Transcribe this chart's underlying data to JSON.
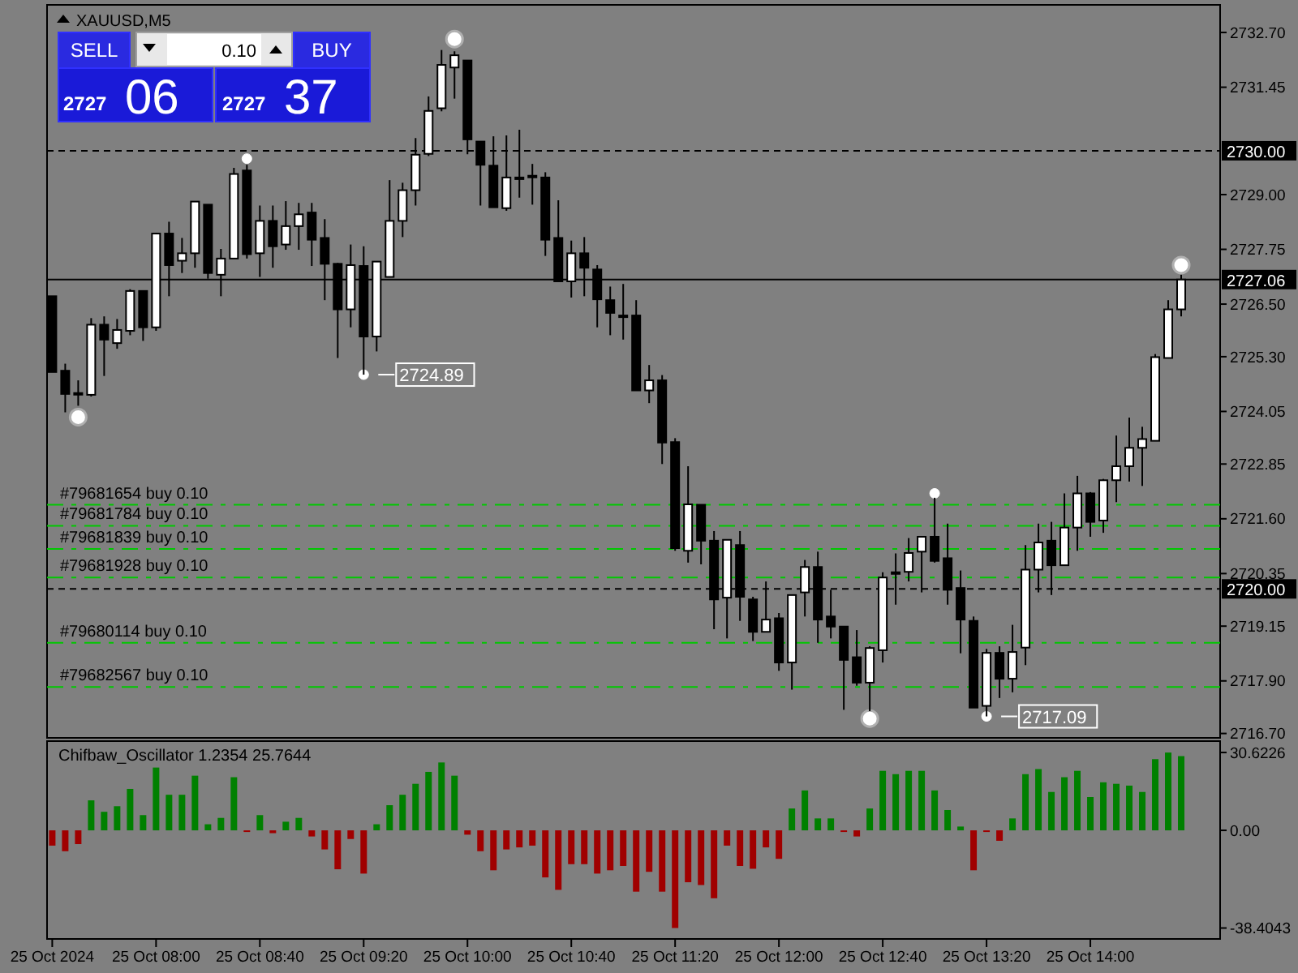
{
  "chart_data": [
    {
      "type": "candlestick",
      "title": "XAUUSD,M5",
      "tick_labels": "y",
      "x": [
        "2024-10-25T07:20",
        "2024-10-25T07:25",
        "2024-10-25T07:30",
        "2024-10-25T07:35",
        "2024-10-25T07:40",
        "2024-10-25T07:45",
        "2024-10-25T07:50",
        "2024-10-25T07:55",
        "2024-10-25T08:00",
        "2024-10-25T08:05",
        "2024-10-25T08:10",
        "2024-10-25T08:15",
        "2024-10-25T08:20",
        "2024-10-25T08:25",
        "2024-10-25T08:30",
        "2024-10-25T08:35",
        "2024-10-25T08:40",
        "2024-10-25T08:45",
        "2024-10-25T08:50",
        "2024-10-25T08:55",
        "2024-10-25T09:00",
        "2024-10-25T09:05",
        "2024-10-25T09:10",
        "2024-10-25T09:15",
        "2024-10-25T09:20",
        "2024-10-25T09:25",
        "2024-10-25T09:30",
        "2024-10-25T09:35",
        "2024-10-25T09:40",
        "2024-10-25T09:45",
        "2024-10-25T09:50",
        "2024-10-25T09:55",
        "2024-10-25T10:00",
        "2024-10-25T10:05",
        "2024-10-25T10:10",
        "2024-10-25T10:15",
        "2024-10-25T10:20",
        "2024-10-25T10:25",
        "2024-10-25T10:30",
        "2024-10-25T10:35",
        "2024-10-25T10:40",
        "2024-10-25T10:45",
        "2024-10-25T10:50",
        "2024-10-25T10:55",
        "2024-10-25T11:00",
        "2024-10-25T11:05",
        "2024-10-25T11:10",
        "2024-10-25T11:15",
        "2024-10-25T11:20",
        "2024-10-25T11:25",
        "2024-10-25T11:30",
        "2024-10-25T11:35",
        "2024-10-25T11:40",
        "2024-10-25T11:45",
        "2024-10-25T11:50",
        "2024-10-25T11:55",
        "2024-10-25T12:00",
        "2024-10-25T12:05",
        "2024-10-25T12:10",
        "2024-10-25T12:15",
        "2024-10-25T12:20",
        "2024-10-25T12:25",
        "2024-10-25T12:30",
        "2024-10-25T12:35",
        "2024-10-25T12:40",
        "2024-10-25T12:45",
        "2024-10-25T12:50",
        "2024-10-25T12:55",
        "2024-10-25T13:00",
        "2024-10-25T13:05",
        "2024-10-25T13:10",
        "2024-10-25T13:15",
        "2024-10-25T13:20",
        "2024-10-25T13:25",
        "2024-10-25T13:30",
        "2024-10-25T13:35",
        "2024-10-25T13:40",
        "2024-10-25T13:45",
        "2024-10-25T13:50",
        "2024-10-25T13:55",
        "2024-10-25T14:00",
        "2024-10-25T14:05",
        "2024-10-25T14:10",
        "2024-10-25T14:15",
        "2024-10-25T14:20",
        "2024-10-25T14:25",
        "2024-10-25T14:30",
        "2024-10-25T14:35"
      ],
      "ohlc": [
        [
          2726.68,
          2726.68,
          2724.95,
          2724.95
        ],
        [
          2724.98,
          2725.14,
          2724.03,
          2724.45
        ],
        [
          2724.47,
          2724.76,
          2724.18,
          2724.47
        ],
        [
          2724.43,
          2726.18,
          2724.39,
          2726.03
        ],
        [
          2726.03,
          2726.22,
          2724.86,
          2725.69
        ],
        [
          2725.61,
          2726.16,
          2725.48,
          2725.91
        ],
        [
          2725.89,
          2726.84,
          2725.79,
          2726.8
        ],
        [
          2726.8,
          2726.8,
          2725.66,
          2725.97
        ],
        [
          2725.97,
          2728.13,
          2725.89,
          2728.11
        ],
        [
          2728.11,
          2728.38,
          2726.68,
          2727.39
        ],
        [
          2727.49,
          2728.01,
          2727.21,
          2727.66
        ],
        [
          2727.66,
          2728.84,
          2727.33,
          2728.84
        ],
        [
          2728.77,
          2728.77,
          2727.08,
          2727.21
        ],
        [
          2727.17,
          2727.76,
          2726.68,
          2727.54
        ],
        [
          2727.54,
          2729.61,
          2727.54,
          2729.47
        ],
        [
          2729.55,
          2729.68,
          2727.54,
          2727.64
        ],
        [
          2727.66,
          2728.75,
          2727.12,
          2728.4
        ],
        [
          2728.4,
          2728.75,
          2727.33,
          2727.82
        ],
        [
          2727.86,
          2728.85,
          2727.74,
          2728.28
        ],
        [
          2728.28,
          2728.81,
          2727.74,
          2728.55
        ],
        [
          2728.59,
          2728.81,
          2727.37,
          2727.97
        ],
        [
          2728.01,
          2728.44,
          2726.59,
          2727.42
        ],
        [
          2727.42,
          2727.44,
          2725.27,
          2726.38
        ],
        [
          2726.38,
          2727.86,
          2725.97,
          2727.39
        ],
        [
          2727.37,
          2727.82,
          2724.89,
          2725.76
        ],
        [
          2725.76,
          2727.47,
          2725.42,
          2727.47
        ],
        [
          2727.12,
          2729.33,
          2727.12,
          2728.4
        ],
        [
          2728.4,
          2729.27,
          2728.03,
          2729.1
        ],
        [
          2729.1,
          2730.29,
          2728.75,
          2729.91
        ],
        [
          2729.93,
          2731.24,
          2729.88,
          2730.91
        ],
        [
          2730.97,
          2732.3,
          2730.9,
          2731.96
        ],
        [
          2731.9,
          2732.27,
          2731.19,
          2732.18
        ],
        [
          2732.06,
          2732.06,
          2729.92,
          2730.26
        ],
        [
          2730.21,
          2730.21,
          2728.75,
          2729.68
        ],
        [
          2729.66,
          2730.33,
          2728.71,
          2728.71
        ],
        [
          2728.69,
          2730.35,
          2728.63,
          2729.39
        ],
        [
          2729.39,
          2730.48,
          2728.93,
          2729.39
        ],
        [
          2729.43,
          2729.7,
          2728.77,
          2729.43
        ],
        [
          2729.39,
          2729.51,
          2727.6,
          2727.97
        ],
        [
          2728.01,
          2728.87,
          2727.02,
          2727.02
        ],
        [
          2727.02,
          2727.95,
          2726.65,
          2727.66
        ],
        [
          2727.66,
          2728.03,
          2726.68,
          2727.33
        ],
        [
          2727.29,
          2727.39,
          2725.97,
          2726.61
        ],
        [
          2726.59,
          2726.9,
          2725.79,
          2726.3
        ],
        [
          2726.24,
          2726.96,
          2725.69,
          2726.24
        ],
        [
          2726.24,
          2726.59,
          2724.53,
          2724.53
        ],
        [
          2724.53,
          2725.11,
          2724.24,
          2724.76
        ],
        [
          2724.76,
          2724.88,
          2722.85,
          2723.34
        ],
        [
          2723.35,
          2723.44,
          2720.87,
          2720.93
        ],
        [
          2720.87,
          2722.8,
          2720.6,
          2721.93
        ],
        [
          2721.92,
          2721.92,
          2720.56,
          2721.1
        ],
        [
          2721.1,
          2721.32,
          2719.08,
          2719.76
        ],
        [
          2719.8,
          2721.12,
          2718.87,
          2721.12
        ],
        [
          2721.0,
          2721.32,
          2719.27,
          2719.82
        ],
        [
          2719.76,
          2719.82,
          2718.81,
          2719.02
        ],
        [
          2719.02,
          2720.17,
          2719.02,
          2719.3
        ],
        [
          2719.33,
          2719.45,
          2718.13,
          2718.32
        ],
        [
          2718.32,
          2719.86,
          2717.7,
          2719.86
        ],
        [
          2719.92,
          2720.66,
          2719.37,
          2720.5
        ],
        [
          2720.5,
          2720.85,
          2718.77,
          2719.3
        ],
        [
          2719.37,
          2719.98,
          2718.87,
          2719.14
        ],
        [
          2719.14,
          2719.14,
          2717.24,
          2718.38
        ],
        [
          2718.44,
          2719.06,
          2717.79,
          2717.86
        ],
        [
          2717.86,
          2718.69,
          2717.21,
          2718.65
        ],
        [
          2718.6,
          2720.38,
          2718.32,
          2720.26
        ],
        [
          2720.38,
          2720.81,
          2719.64,
          2720.38
        ],
        [
          2720.39,
          2721.16,
          2720.17,
          2720.82
        ],
        [
          2720.85,
          2721.19,
          2719.92,
          2721.19
        ],
        [
          2721.19,
          2722.08,
          2720.6,
          2720.64
        ],
        [
          2720.7,
          2721.49,
          2719.64,
          2719.98
        ],
        [
          2720.02,
          2720.42,
          2718.53,
          2719.3
        ],
        [
          2719.27,
          2719.37,
          2717.29,
          2717.29
        ],
        [
          2717.33,
          2718.63,
          2717.09,
          2718.54
        ],
        [
          2718.54,
          2718.69,
          2717.51,
          2717.95
        ],
        [
          2717.95,
          2719.18,
          2717.64,
          2718.56
        ],
        [
          2718.66,
          2721.0,
          2718.26,
          2720.44
        ],
        [
          2720.44,
          2721.49,
          2719.92,
          2721.06
        ],
        [
          2721.1,
          2721.53,
          2719.86,
          2720.54
        ],
        [
          2720.54,
          2722.18,
          2720.54,
          2721.4
        ],
        [
          2721.4,
          2722.58,
          2720.87,
          2722.18
        ],
        [
          2722.18,
          2722.21,
          2721.19,
          2721.53
        ],
        [
          2721.56,
          2722.51,
          2721.28,
          2722.48
        ],
        [
          2722.48,
          2723.5,
          2721.98,
          2722.8
        ],
        [
          2722.8,
          2723.91,
          2722.45,
          2723.22
        ],
        [
          2723.22,
          2723.7,
          2722.35,
          2723.42
        ],
        [
          2723.38,
          2725.36,
          2723.38,
          2725.29
        ],
        [
          2725.27,
          2726.59,
          2725.27,
          2726.38
        ],
        [
          2726.38,
          2727.17,
          2726.22,
          2727.06
        ]
      ],
      "series": [
        {
          "type": "scatter",
          "marker": "circle",
          "color": "#ffffff",
          "x": [
            "2024-10-25T07:30",
            "2024-10-25T09:55",
            "2024-10-25T12:35",
            "2024-10-25T14:35"
          ],
          "values": [
            2723.92,
            2732.55,
            2717.04,
            2727.39
          ]
        },
        {
          "type": "scatter",
          "marker": "circle",
          "color": "#ffffff",
          "x": [
            "2024-10-25T08:35",
            "2024-10-25T09:20",
            "2024-10-25T13:00",
            "2024-10-25T13:20"
          ],
          "values": [
            2729.82,
            2724.89,
            2722.18,
            2717.09
          ]
        }
      ],
      "xlim": [
        "2024-10-25T07:18",
        "2024-10-25T14:50"
      ],
      "ylim": [
        2716.6,
        2733.33
      ],
      "yticks": [
        {
          "value": 2732.7,
          "label": "2732.70"
        },
        2731.45,
        {
          "value": 2729,
          "label": "2729.00"
        },
        2727.75,
        {
          "value": 2726.5,
          "label": "2726.50"
        },
        {
          "value": 2725.3,
          "label": "2725.30"
        },
        2724.05,
        2722.85,
        {
          "value": 2721.6,
          "label": "2721.60"
        },
        2720.35,
        2719.15,
        {
          "value": 2717.9,
          "label": "2717.90"
        },
        {
          "value": 2716.7,
          "label": "2716.70"
        }
      ],
      "ref_lines": [
        {
          "axis": "y",
          "value": 2730,
          "label": "2730.00",
          "color": "#000000",
          "line_style": "dashed"
        },
        {
          "axis": "y",
          "value": 2727.06,
          "label": "2727.06",
          "color": "#000000",
          "line_style": "solid"
        },
        {
          "axis": "y",
          "value": 2720,
          "label": "2720.00",
          "color": "#000000",
          "line_style": "dashed"
        },
        {
          "axis": "y",
          "value": 2721.92,
          "label": "#79681654 buy 0.10",
          "color": "#00c800",
          "line_style": "dashed"
        },
        {
          "axis": "y",
          "value": 2721.44,
          "label": "#79681784 buy 0.10",
          "color": "#00c800",
          "line_style": "dashed"
        },
        {
          "axis": "y",
          "value": 2720.91,
          "label": "#79681839 buy 0.10",
          "color": "#00c800",
          "line_style": "dashed"
        },
        {
          "axis": "y",
          "value": 2720.26,
          "label": "#79681928 buy 0.10",
          "color": "#00c800",
          "line_style": "dashed"
        },
        {
          "axis": "y",
          "value": 2718.77,
          "label": "#79680114 buy 0.10",
          "color": "#00c800",
          "line_style": "dashed"
        },
        {
          "axis": "y",
          "value": 2717.76,
          "label": "#79682567 buy 0.10",
          "color": "#00c800",
          "line_style": "dashed"
        }
      ],
      "annotations": [
        "SELL",
        "0.10",
        "BUY",
        "2727",
        "06",
        "2727",
        "37",
        {
          "text": "2724.89",
          "x": "2024-10-25T09:20",
          "y": 2724.89
        },
        {
          "text": "2717.09",
          "x": "2024-10-25T13:20",
          "y": 2717.09
        }
      ]
    },
    {
      "type": "bar",
      "title": "Chifbaw_Oscillator 1.2354 25.7644",
      "x": [
        "2024-10-25T07:20",
        "2024-10-25T07:25",
        "2024-10-25T07:30",
        "2024-10-25T07:35",
        "2024-10-25T07:40",
        "2024-10-25T07:45",
        "2024-10-25T07:50",
        "2024-10-25T07:55",
        "2024-10-25T08:00",
        "2024-10-25T08:05",
        "2024-10-25T08:10",
        "2024-10-25T08:15",
        "2024-10-25T08:20",
        "2024-10-25T08:25",
        "2024-10-25T08:30",
        "2024-10-25T08:35",
        "2024-10-25T08:40",
        "2024-10-25T08:45",
        "2024-10-25T08:50",
        "2024-10-25T08:55",
        "2024-10-25T09:00",
        "2024-10-25T09:05",
        "2024-10-25T09:10",
        "2024-10-25T09:15",
        "2024-10-25T09:20",
        "2024-10-25T09:25",
        "2024-10-25T09:30",
        "2024-10-25T09:35",
        "2024-10-25T09:40",
        "2024-10-25T09:45",
        "2024-10-25T09:50",
        "2024-10-25T09:55",
        "2024-10-25T10:00",
        "2024-10-25T10:05",
        "2024-10-25T10:10",
        "2024-10-25T10:15",
        "2024-10-25T10:20",
        "2024-10-25T10:25",
        "2024-10-25T10:30",
        "2024-10-25T10:35",
        "2024-10-25T10:40",
        "2024-10-25T10:45",
        "2024-10-25T10:50",
        "2024-10-25T10:55",
        "2024-10-25T11:00",
        "2024-10-25T11:05",
        "2024-10-25T11:10",
        "2024-10-25T11:15",
        "2024-10-25T11:20",
        "2024-10-25T11:25",
        "2024-10-25T11:30",
        "2024-10-25T11:35",
        "2024-10-25T11:40",
        "2024-10-25T11:45",
        "2024-10-25T11:50",
        "2024-10-25T11:55",
        "2024-10-25T12:00",
        "2024-10-25T12:05",
        "2024-10-25T12:10",
        "2024-10-25T12:15",
        "2024-10-25T12:20",
        "2024-10-25T12:25",
        "2024-10-25T12:30",
        "2024-10-25T12:35",
        "2024-10-25T12:40",
        "2024-10-25T12:45",
        "2024-10-25T12:50",
        "2024-10-25T12:55",
        "2024-10-25T13:00",
        "2024-10-25T13:05",
        "2024-10-25T13:10",
        "2024-10-25T13:15",
        "2024-10-25T13:20",
        "2024-10-25T13:25",
        "2024-10-25T13:30",
        "2024-10-25T13:35",
        "2024-10-25T13:40",
        "2024-10-25T13:45",
        "2024-10-25T13:50",
        "2024-10-25T13:55",
        "2024-10-25T14:00",
        "2024-10-25T14:05",
        "2024-10-25T14:10",
        "2024-10-25T14:15",
        "2024-10-25T14:20",
        "2024-10-25T14:25",
        "2024-10-25T14:30",
        "2024-10-25T14:35"
      ],
      "values": [
        -6.0,
        -8.2,
        -5.4,
        11.8,
        7.3,
        9.5,
        16.3,
        6.0,
        24.7,
        14.0,
        14.0,
        21.5,
        2.4,
        4.9,
        20.9,
        -0.4,
        6.0,
        -1.1,
        3.4,
        4.9,
        -2.4,
        -7.5,
        -15.3,
        -3.4,
        -17.0,
        2.4,
        9.9,
        14.0,
        18.3,
        23.0,
        26.7,
        21.5,
        -1.7,
        -8.2,
        -15.7,
        -7.5,
        -6.7,
        -6.0,
        -18.5,
        -23.4,
        -13.3,
        -13.3,
        -17.0,
        -15.7,
        -14.0,
        -24.1,
        -16.3,
        -24.1,
        -38.4,
        -20.4,
        -21.5,
        -26.7,
        -6.0,
        -14.0,
        -15.1,
        -6.7,
        -11.2,
        8.6,
        15.7,
        4.7,
        4.7,
        -0.4,
        -2.4,
        8.6,
        23.4,
        22.1,
        23.4,
        23.4,
        15.7,
        8.0,
        1.5,
        -15.7,
        -0.4,
        -4.1,
        4.7,
        22.1,
        24.1,
        15.1,
        20.9,
        23.4,
        13.1,
        18.9,
        18.3,
        17.6,
        15.1,
        28.0,
        30.6,
        29.2
      ],
      "colors": [
        "#a00000",
        "#a00000",
        "#a00000",
        "#008000",
        "#008000",
        "#008000",
        "#008000",
        "#008000",
        "#008000",
        "#008000",
        "#008000",
        "#008000",
        "#008000",
        "#008000",
        "#008000",
        "#a00000",
        "#008000",
        "#a00000",
        "#008000",
        "#008000",
        "#a00000",
        "#a00000",
        "#a00000",
        "#a00000",
        "#a00000",
        "#008000",
        "#008000",
        "#008000",
        "#008000",
        "#008000",
        "#008000",
        "#008000",
        "#a00000",
        "#a00000",
        "#a00000",
        "#a00000",
        "#a00000",
        "#a00000",
        "#a00000",
        "#a00000",
        "#a00000",
        "#a00000",
        "#a00000",
        "#a00000",
        "#a00000",
        "#a00000",
        "#a00000",
        "#a00000",
        "#a00000",
        "#a00000",
        "#a00000",
        "#a00000",
        "#a00000",
        "#a00000",
        "#a00000",
        "#a00000",
        "#a00000",
        "#008000",
        "#008000",
        "#008000",
        "#008000",
        "#a00000",
        "#a00000",
        "#008000",
        "#008000",
        "#008000",
        "#008000",
        "#008000",
        "#008000",
        "#008000",
        "#008000",
        "#a00000",
        "#a00000",
        "#a00000",
        "#008000",
        "#008000",
        "#008000",
        "#008000",
        "#008000",
        "#008000",
        "#008000",
        "#008000",
        "#008000",
        "#008000",
        "#008000",
        "#008000",
        "#008000",
        "#008000"
      ],
      "xlim": [
        "2024-10-25T07:18",
        "2024-10-25T14:50"
      ],
      "xticks": [
        {
          "value": "2024-10-25T07:20",
          "label": "25 Oct 2024"
        },
        {
          "value": "2024-10-25T08:00",
          "label": "25 Oct 08:00"
        },
        {
          "value": "2024-10-25T08:40",
          "label": "25 Oct 08:40"
        },
        {
          "value": "2024-10-25T09:20",
          "label": "25 Oct 09:20"
        },
        {
          "value": "2024-10-25T10:00",
          "label": "25 Oct 10:00"
        },
        {
          "value": "2024-10-25T10:40",
          "label": "25 Oct 10:40"
        },
        {
          "value": "2024-10-25T11:20",
          "label": "25 Oct 11:20"
        },
        {
          "value": "2024-10-25T12:00",
          "label": "25 Oct 12:00"
        },
        {
          "value": "2024-10-25T12:40",
          "label": "25 Oct 12:40"
        },
        {
          "value": "2024-10-25T13:20",
          "label": "25 Oct 13:20"
        },
        {
          "value": "2024-10-25T14:00",
          "label": "25 Oct 14:00"
        }
      ],
      "ylim": [
        -42.7,
        35.1
      ],
      "yticks": [
        30.6226,
        {
          "value": 0,
          "label": "0.00"
        },
        -38.4043
      ]
    }
  ]
}
